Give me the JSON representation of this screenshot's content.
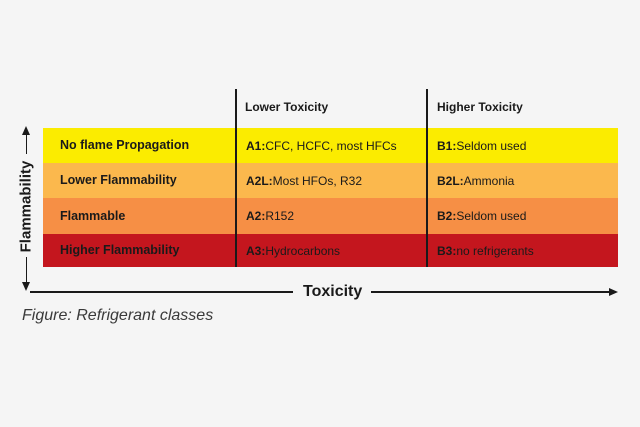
{
  "axes": {
    "y_label": "Flammability",
    "x_label": "Toxicity"
  },
  "table": {
    "column_headers": [
      {
        "label": "Lower Toxicity"
      },
      {
        "label": "Higher Toxicity"
      }
    ],
    "rows": [
      {
        "flammability_label": "No flame Propagation",
        "color": "#FBEC00",
        "lower_toxicity": {
          "code": "A1:",
          "text": "CFC, HCFC, most HFCs"
        },
        "higher_toxicity": {
          "code": "B1:",
          "text": "Seldom used"
        }
      },
      {
        "flammability_label": "Lower Flammability",
        "color": "#FBB84D",
        "lower_toxicity": {
          "code": "A2L:",
          "text": "Most HFOs, R32"
        },
        "higher_toxicity": {
          "code": "B2L:",
          "text": "Ammonia"
        }
      },
      {
        "flammability_label": "Flammable",
        "color": "#F68F45",
        "lower_toxicity": {
          "code": "A2:",
          "text": "R152"
        },
        "higher_toxicity": {
          "code": "B2:",
          "text": "Seldom used"
        }
      },
      {
        "flammability_label": "Higher Flammability",
        "color": "#C4161E",
        "lower_toxicity": {
          "code": "A3:",
          "text": "Hydrocarbons"
        },
        "higher_toxicity": {
          "code": "B3:",
          "text": "no refrigerants"
        }
      }
    ]
  },
  "caption": "Figure: Refrigerant classes",
  "colors": {
    "background": "#F5F5F5",
    "axis": "#1A1A1A",
    "row_yellow": "#FBEC00",
    "row_light_orange": "#FBB84D",
    "row_orange": "#F68F45",
    "row_red": "#C4161E",
    "caption_text": "#3A3A3A"
  }
}
